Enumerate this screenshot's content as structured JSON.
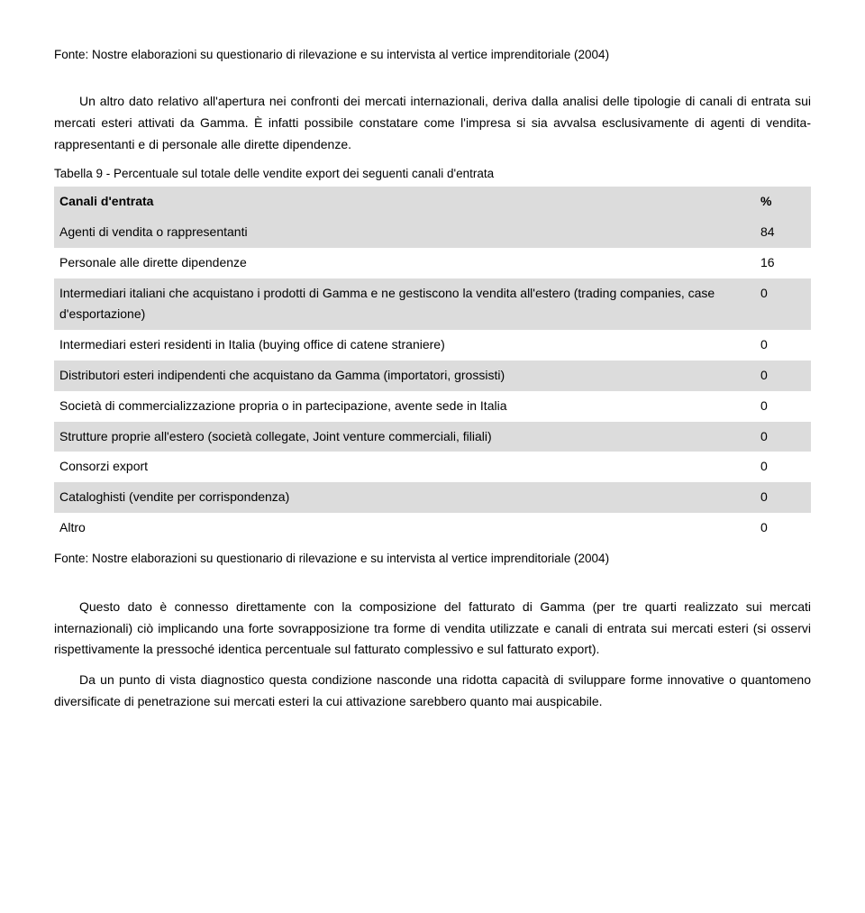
{
  "source_top": "Fonte: Nostre elaborazioni su questionario di rilevazione e su intervista al vertice imprenditoriale (2004)",
  "para1": "Un altro dato relativo all'apertura nei confronti dei mercati internazionali, deriva dalla analisi delle tipologie di canali di entrata sui mercati esteri attivati da Gamma. È infatti possibile constatare come l'impresa si sia avvalsa esclusivamente di agenti di vendita-rappresentanti e di personale alle dirette dipendenze.",
  "table_title": "Tabella 9 -  Percentuale sul totale delle vendite export dei seguenti canali d'entrata",
  "table": {
    "header": {
      "label": "Canali d'entrata",
      "value": "%"
    },
    "rows": [
      {
        "label": "Agenti di vendita o rappresentanti",
        "value": "84",
        "shaded": true
      },
      {
        "label": "Personale alle dirette dipendenze",
        "value": "16",
        "shaded": false
      },
      {
        "label": "Intermediari italiani che acquistano i prodotti di Gamma e ne gestiscono la vendita all'estero (trading companies, case d'esportazione)",
        "value": "0",
        "shaded": true
      },
      {
        "label": "Intermediari esteri residenti in Italia (buying office di catene straniere)",
        "value": "0",
        "shaded": false
      },
      {
        "label": "Distributori esteri indipendenti che acquistano da Gamma (importatori, grossisti)",
        "value": "0",
        "shaded": true
      },
      {
        "label": "Società di commercializzazione propria o in partecipazione, avente sede in Italia",
        "value": "0",
        "shaded": false
      },
      {
        "label": "Strutture proprie all'estero (società collegate, Joint venture commerciali, filiali)",
        "value": "0",
        "shaded": true
      },
      {
        "label": "Consorzi export",
        "value": "0",
        "shaded": false
      },
      {
        "label": "Cataloghisti (vendite per corrispondenza)",
        "value": "0",
        "shaded": true
      },
      {
        "label": "Altro",
        "value": "0",
        "shaded": false
      }
    ]
  },
  "source_after": "Fonte: Nostre elaborazioni su questionario di rilevazione e su intervista al vertice imprenditoriale (2004)",
  "para2": "Questo dato è connesso direttamente con la composizione del fatturato di Gamma (per tre quarti realizzato sui mercati internazionali) ciò implicando una forte sovrapposizione tra forme di vendita utilizzate e canali di entrata sui mercati esteri (si osservi rispettivamente la pressoché identica percentuale sul fatturato complessivo e sul fatturato export).",
  "para3": "Da un punto di vista diagnostico questa condizione nasconde una ridotta capacità di sviluppare forme innovative o quantomeno diversificate di penetrazione sui mercati esteri la cui attivazione sarebbero quanto mai auspicabile."
}
